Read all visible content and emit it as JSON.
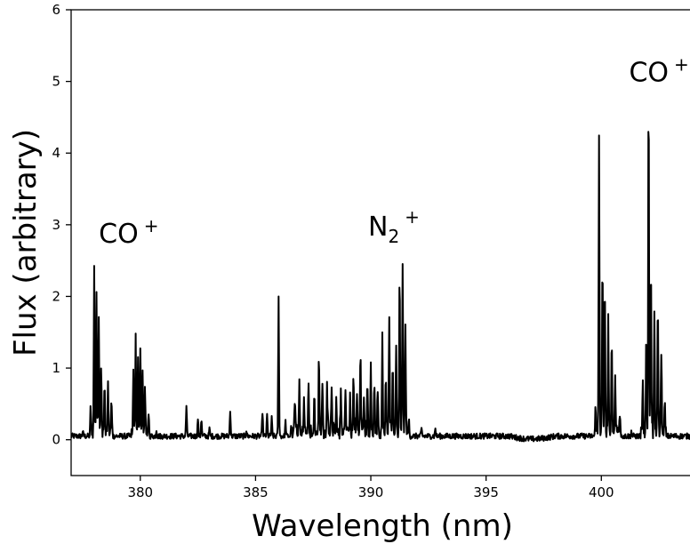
{
  "chart_data": {
    "type": "line",
    "title": "",
    "xlabel": "Wavelength (nm)",
    "ylabel": "Flux (arbitrary)",
    "xlim": [
      377.0,
      404.0
    ],
    "ylim": [
      -0.5,
      6.0
    ],
    "grid": false,
    "x_ticks": [
      380,
      385,
      390,
      395,
      400
    ],
    "x_tick_labels": [
      "380",
      "385",
      "390",
      "395",
      "400"
    ],
    "y_ticks": [
      0,
      1,
      2,
      3,
      4,
      5,
      6
    ],
    "y_tick_labels": [
      "0",
      "1",
      "2",
      "3",
      "4",
      "5",
      "6"
    ],
    "line_color": "#000000",
    "baseline": 0.05,
    "peaks": [
      [
        377.5,
        0.12
      ],
      [
        377.85,
        0.4
      ],
      [
        378.0,
        2.35
      ],
      [
        378.1,
        1.95
      ],
      [
        378.2,
        1.6
      ],
      [
        378.3,
        1.0
      ],
      [
        378.45,
        0.75
      ],
      [
        378.6,
        0.8
      ],
      [
        378.75,
        0.5
      ],
      [
        379.7,
        0.85
      ],
      [
        379.8,
        1.33
      ],
      [
        379.9,
        1.15
      ],
      [
        380.0,
        1.25
      ],
      [
        380.1,
        0.9
      ],
      [
        380.2,
        0.6
      ],
      [
        380.35,
        0.3
      ],
      [
        380.7,
        0.14
      ],
      [
        382.0,
        0.48
      ],
      [
        382.5,
        0.3
      ],
      [
        382.65,
        0.3
      ],
      [
        383.0,
        0.15
      ],
      [
        383.9,
        0.43
      ],
      [
        384.6,
        0.14
      ],
      [
        385.3,
        0.4
      ],
      [
        385.5,
        0.35
      ],
      [
        385.7,
        0.3
      ],
      [
        386.0,
        1.98
      ],
      [
        386.3,
        0.25
      ],
      [
        386.7,
        0.5
      ],
      [
        386.9,
        0.8
      ],
      [
        387.1,
        0.6
      ],
      [
        387.3,
        0.75
      ],
      [
        387.55,
        0.55
      ],
      [
        387.75,
        1.07
      ],
      [
        387.9,
        0.8
      ],
      [
        388.1,
        0.7
      ],
      [
        388.3,
        0.65
      ],
      [
        388.5,
        0.5
      ],
      [
        388.7,
        0.6
      ],
      [
        388.9,
        0.7
      ],
      [
        389.1,
        0.55
      ],
      [
        389.25,
        0.85
      ],
      [
        389.4,
        0.65
      ],
      [
        389.55,
        1.16
      ],
      [
        389.7,
        0.6
      ],
      [
        389.85,
        0.8
      ],
      [
        390.0,
        1.0
      ],
      [
        390.15,
        0.75
      ],
      [
        390.3,
        0.65
      ],
      [
        390.5,
        1.48
      ],
      [
        390.65,
        0.9
      ],
      [
        390.8,
        1.7
      ],
      [
        390.95,
        1.05
      ],
      [
        391.1,
        1.3
      ],
      [
        391.25,
        2.28
      ],
      [
        391.38,
        2.45
      ],
      [
        391.5,
        1.5
      ],
      [
        391.65,
        0.3
      ],
      [
        392.2,
        0.15
      ],
      [
        392.8,
        0.16
      ],
      [
        399.75,
        0.4
      ],
      [
        399.9,
        4.1
      ],
      [
        400.05,
        2.55
      ],
      [
        400.15,
        2.2
      ],
      [
        400.3,
        1.6
      ],
      [
        400.45,
        1.4
      ],
      [
        400.6,
        0.8
      ],
      [
        400.8,
        0.35
      ],
      [
        401.3,
        0.12
      ],
      [
        401.8,
        0.7
      ],
      [
        401.95,
        1.5
      ],
      [
        402.05,
        4.88
      ],
      [
        402.15,
        2.45
      ],
      [
        402.3,
        1.8
      ],
      [
        402.45,
        1.9
      ],
      [
        402.6,
        1.2
      ],
      [
        402.75,
        0.5
      ]
    ],
    "annotations": [
      {
        "base": "CO",
        "sup": "+",
        "sub": "",
        "x": 379.5,
        "y": 2.75
      },
      {
        "base": "N",
        "sup": "+",
        "sub": "2",
        "x": 391.0,
        "y": 2.85
      },
      {
        "base": "CO",
        "sup": "+",
        "sub": "",
        "x": 402.5,
        "y": 5.0
      }
    ]
  }
}
